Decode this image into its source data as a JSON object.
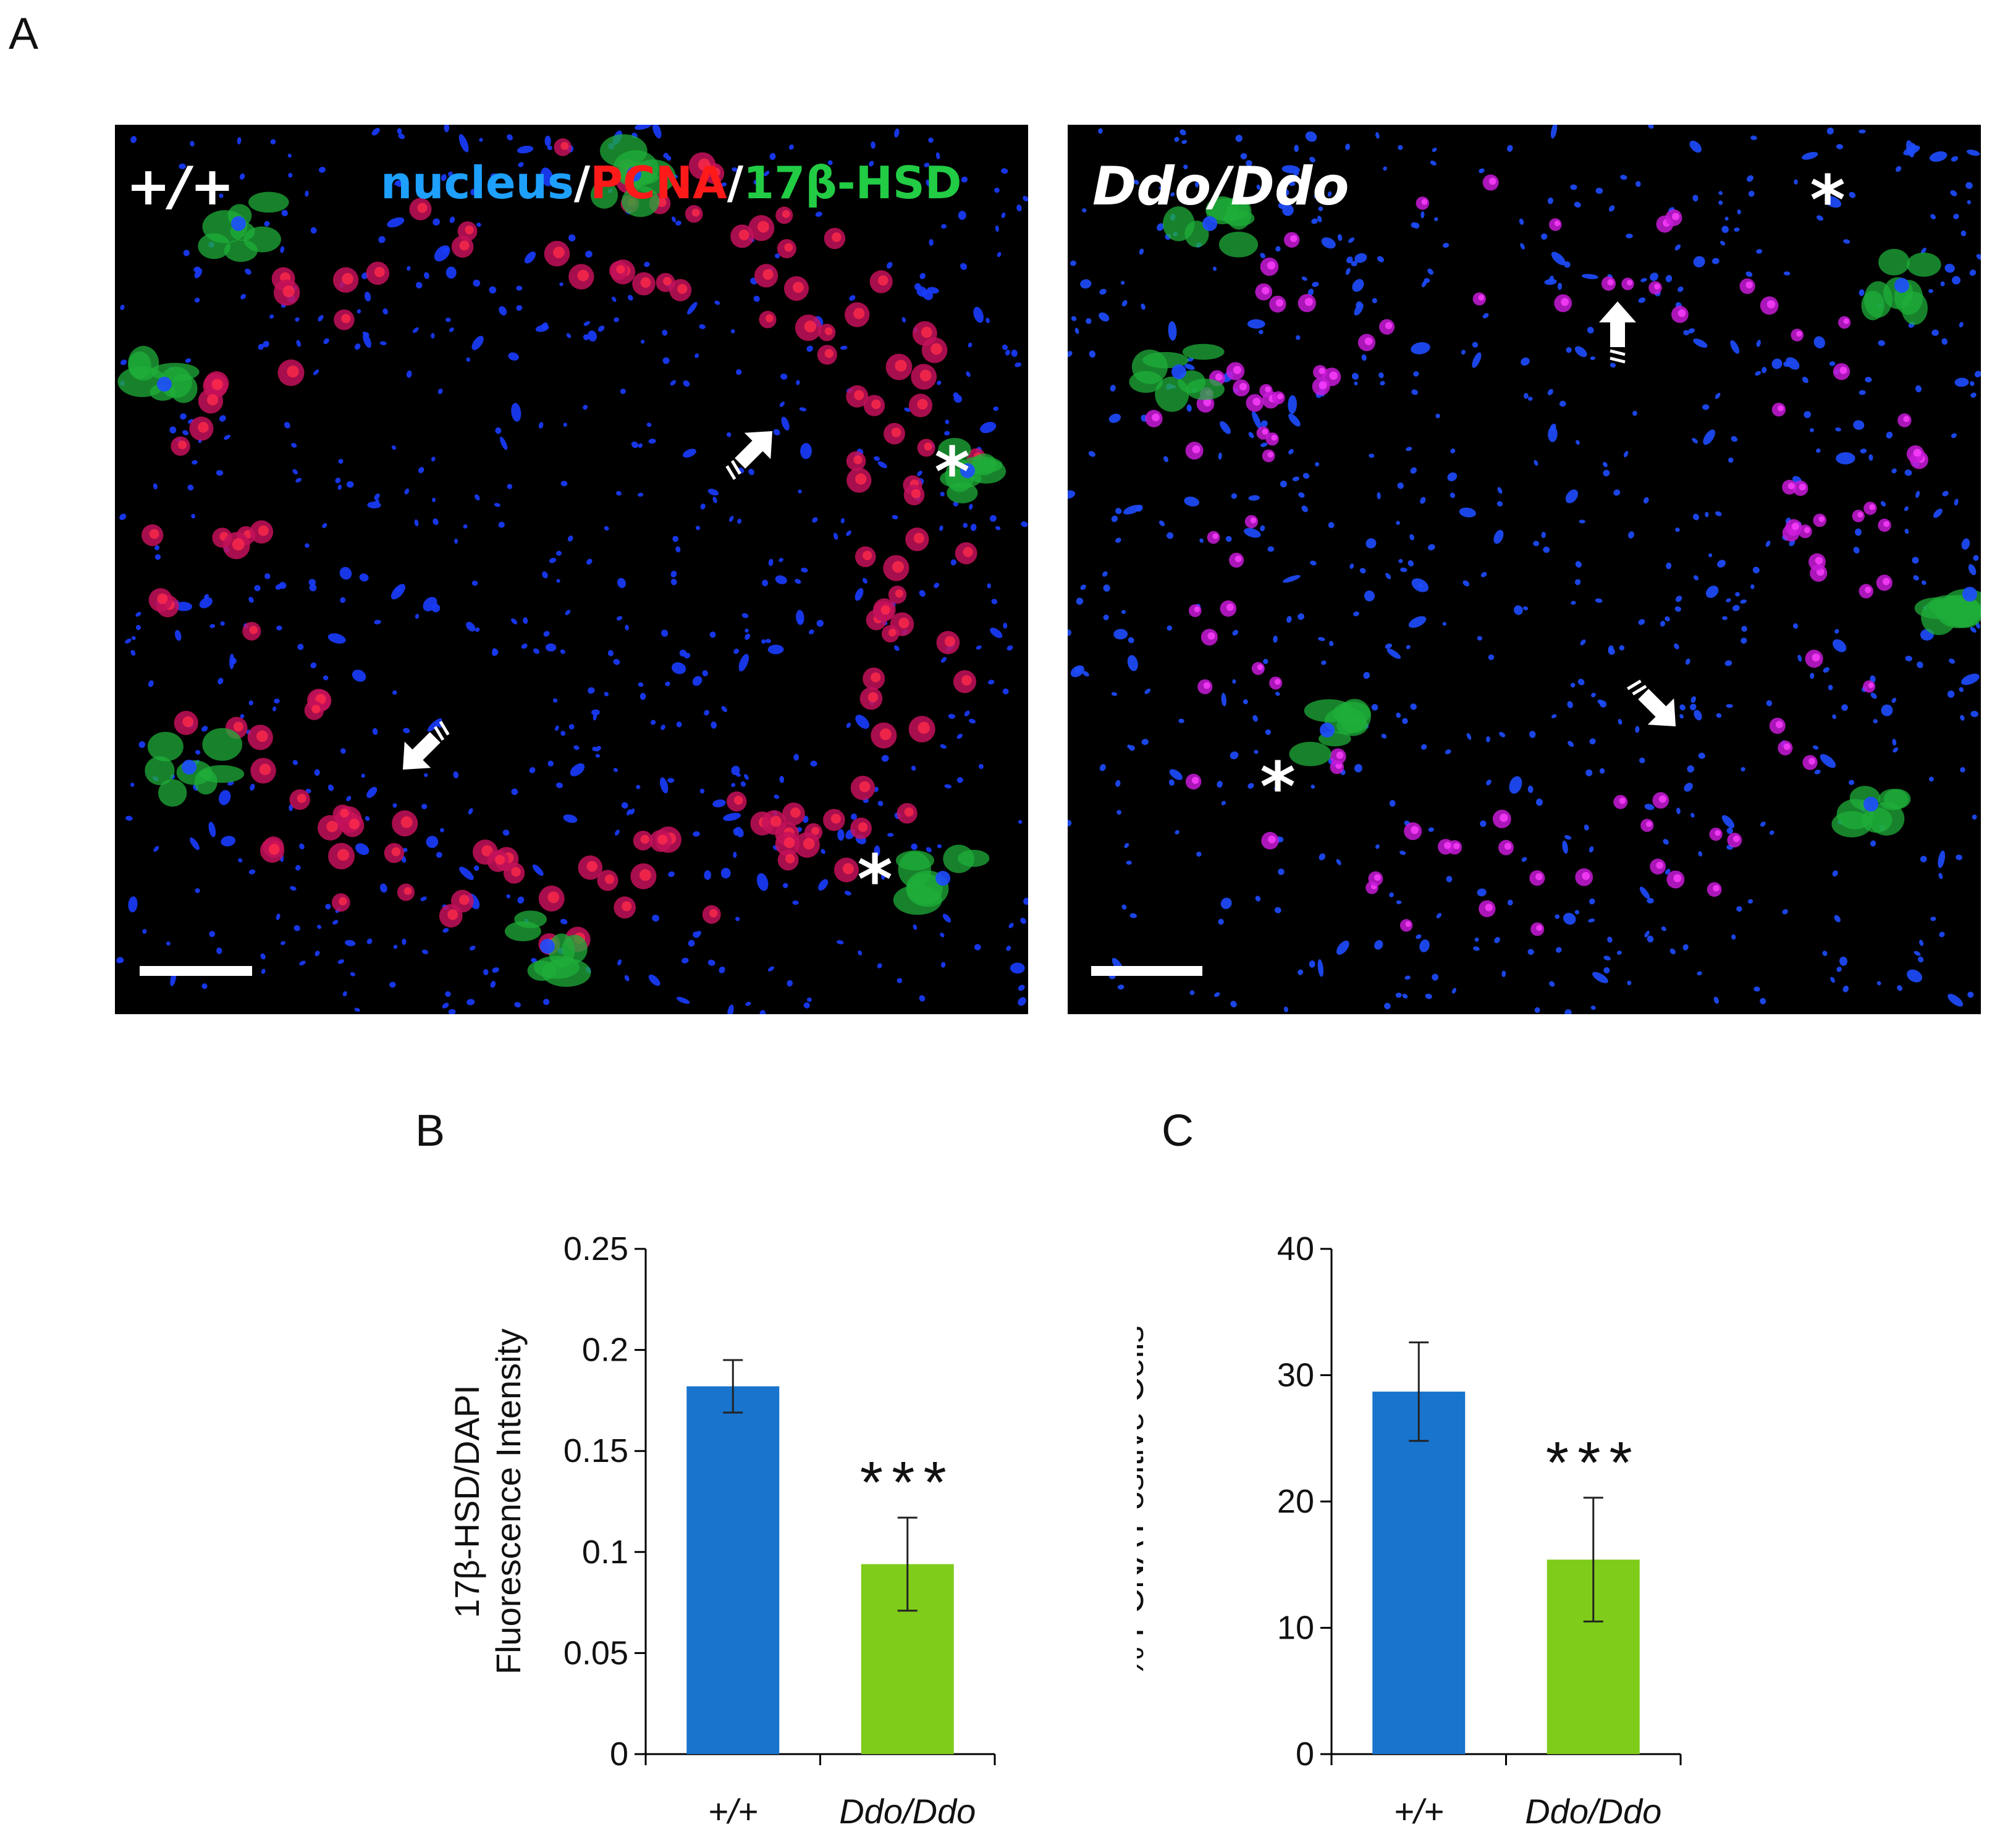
{
  "figure": {
    "panel_a_label": "A",
    "panel_b_label": "B",
    "panel_c_label": "C"
  },
  "micrographs": [
    {
      "genotype_label": "+/+",
      "legend": {
        "nucleus": "nucleus",
        "sep1": "/",
        "pcna": "PCNA",
        "sep2": "/",
        "hsd": "17β-HSD"
      },
      "markers": {
        "arrows": 2,
        "asterisks": 2
      },
      "scale_bar": true
    },
    {
      "genotype_label": "Ddo/Ddo",
      "markers": {
        "arrows": 2,
        "asterisks": 2
      },
      "scale_bar": true
    }
  ],
  "colors": {
    "nucleus": "#1e6bff",
    "pcna": "#ff1a1a",
    "hsd": "#22cc44",
    "bar_wt": "#1874cd",
    "bar_ddo": "#7fcc1a",
    "micro_bg": "#000000"
  },
  "chart_data": [
    {
      "type": "bar",
      "panel": "B",
      "categories": [
        "+/+",
        "Ddo/Ddo"
      ],
      "values": [
        0.182,
        0.094
      ],
      "errors": [
        0.013,
        0.023
      ],
      "significance": [
        "",
        "***"
      ],
      "ylabel_line1": "17β-HSD/DAPI",
      "ylabel_line2": "Fluorescence Intensity",
      "ylim": [
        0,
        0.25
      ],
      "yticks": [
        0,
        0.05,
        0.1,
        0.15,
        0.2,
        0.25
      ],
      "yticklabels": [
        "0",
        "0.05",
        "0.1",
        "0.15",
        "0.2",
        "0.25"
      ],
      "grid": false
    },
    {
      "type": "bar",
      "panel": "C",
      "categories": [
        "+/+",
        "Ddo/Ddo"
      ],
      "values": [
        28.7,
        15.4
      ],
      "errors": [
        3.9,
        4.9
      ],
      "significance": [
        "",
        "***"
      ],
      "ylabel": "% PCNA Positive Cells",
      "ylim": [
        0,
        40
      ],
      "yticks": [
        0,
        10,
        20,
        30,
        40
      ],
      "yticklabels": [
        "0",
        "10",
        "20",
        "30",
        "40"
      ],
      "grid": false
    }
  ]
}
